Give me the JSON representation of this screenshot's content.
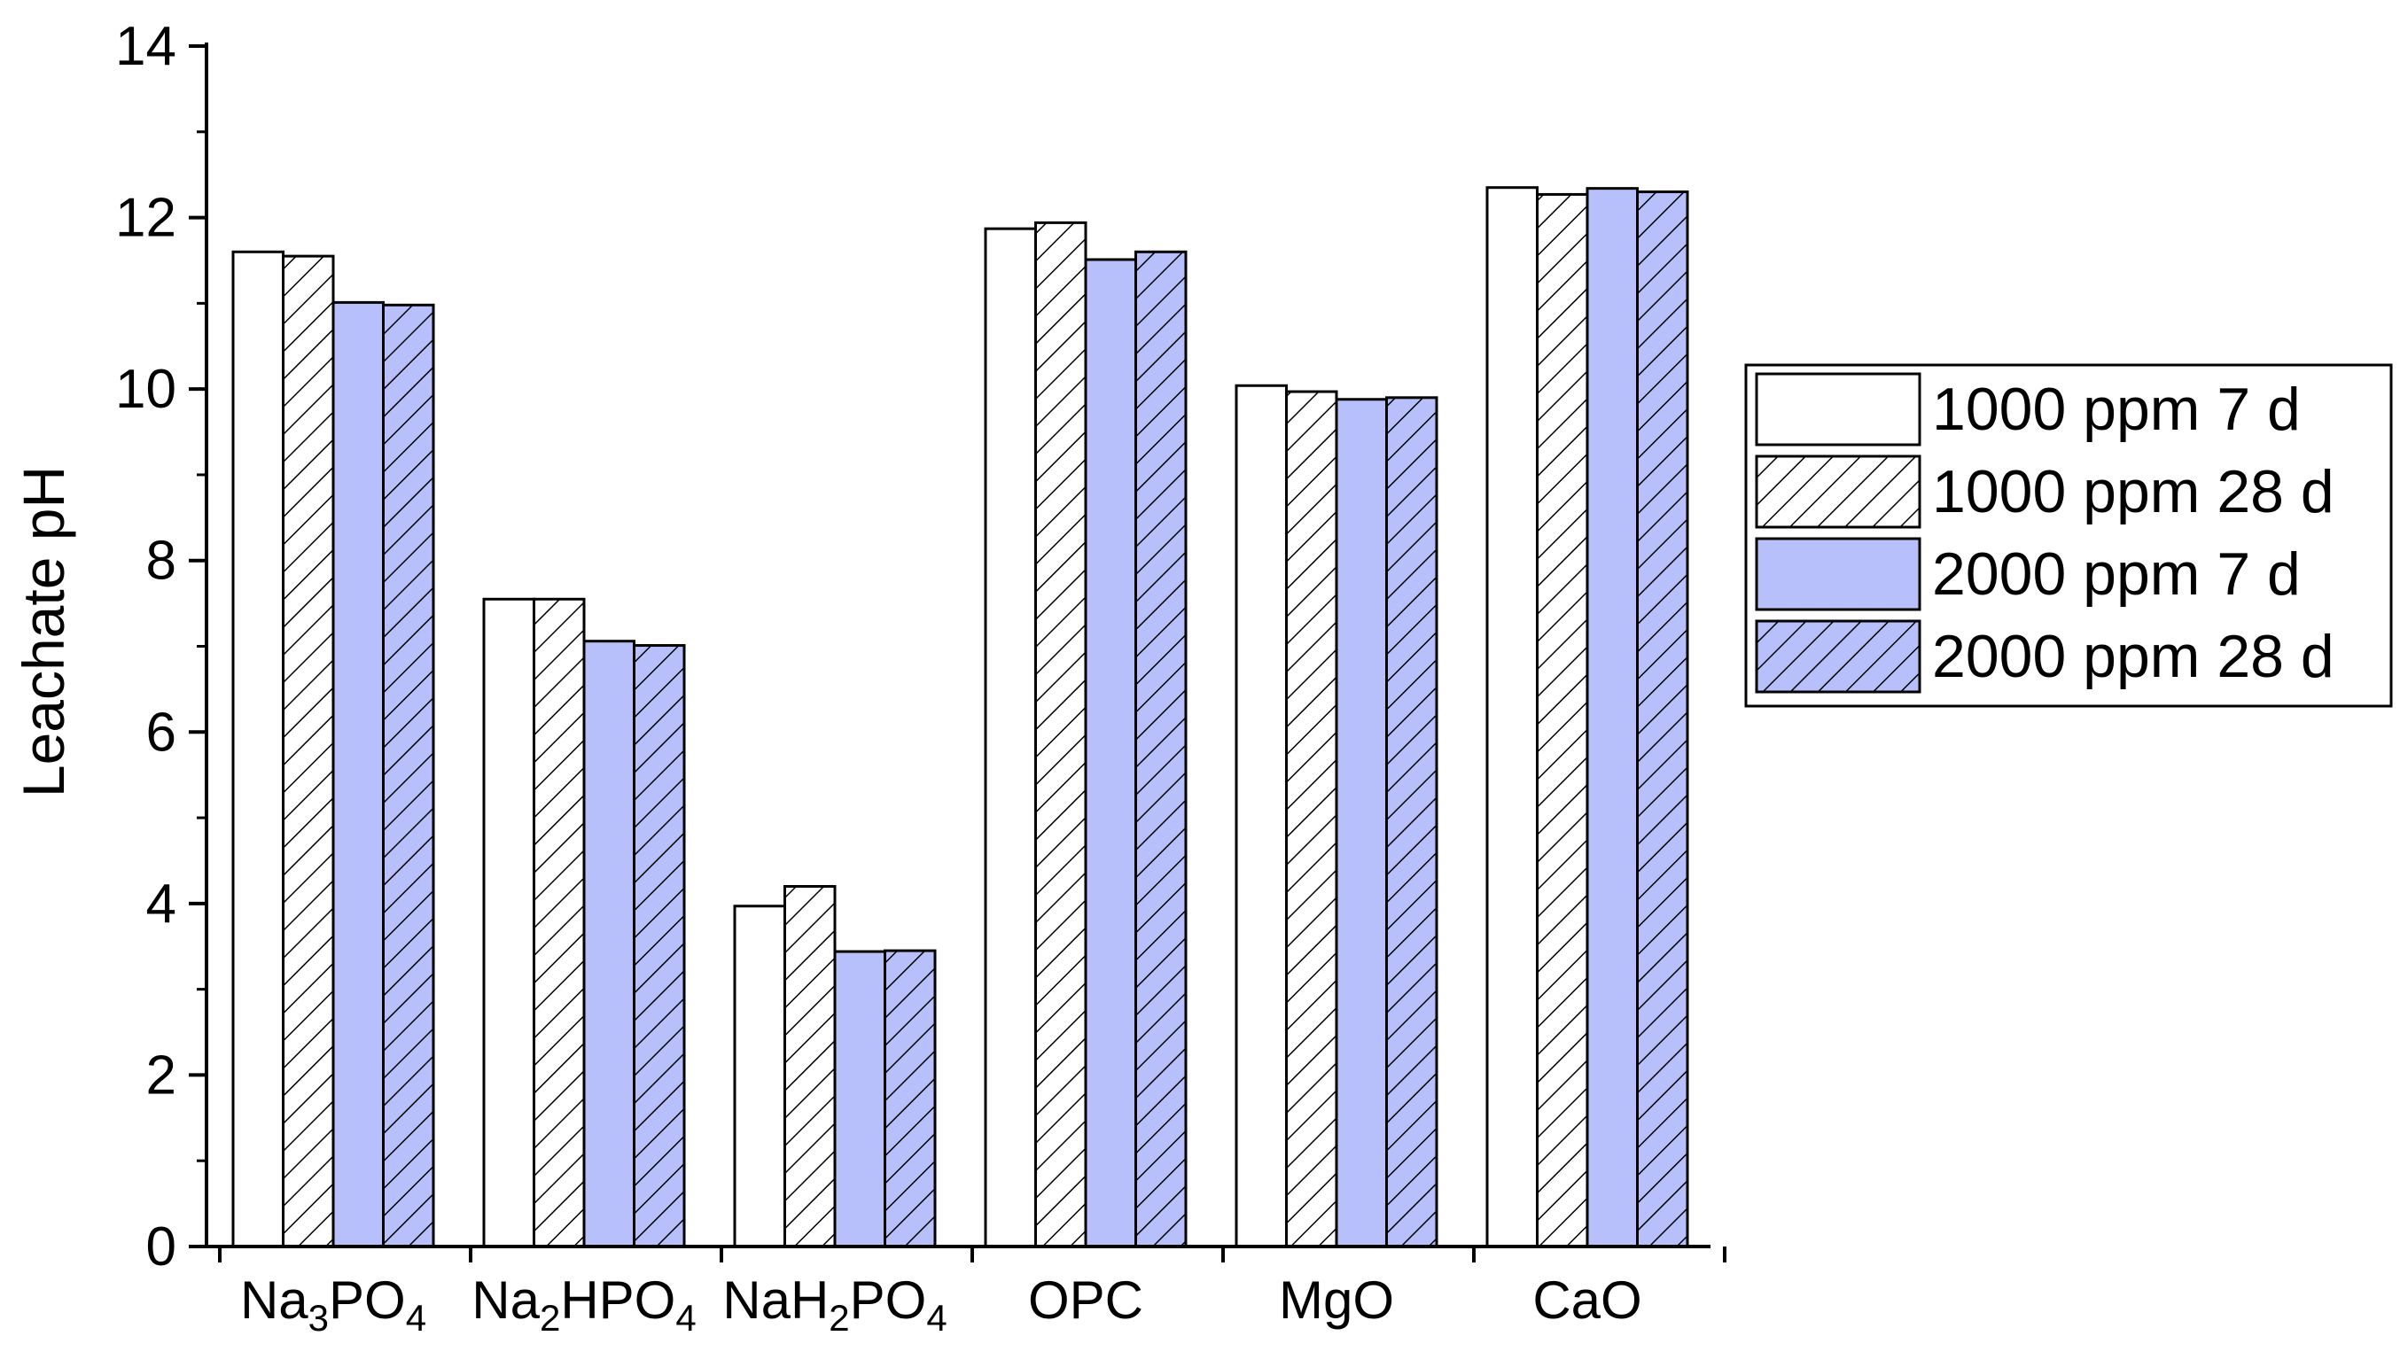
{
  "chart_data": {
    "type": "bar",
    "title": "",
    "xlabel": "",
    "ylabel": "Leachate pH",
    "ylim": [
      0,
      14
    ],
    "yticks": [
      0,
      2,
      4,
      6,
      8,
      10,
      12,
      14
    ],
    "grid": false,
    "legend_position": "right",
    "categories": [
      "Na3PO4",
      "Na2HPO4",
      "NaH2PO4",
      "OPC",
      "MgO",
      "CaO"
    ],
    "category_labels": [
      [
        {
          "t": "Na"
        },
        {
          "t": "3",
          "sub": true
        },
        {
          "t": "PO"
        },
        {
          "t": "4",
          "sub": true
        }
      ],
      [
        {
          "t": "Na"
        },
        {
          "t": "2",
          "sub": true
        },
        {
          "t": "HPO"
        },
        {
          "t": "4",
          "sub": true
        }
      ],
      [
        {
          "t": "NaH"
        },
        {
          "t": "2",
          "sub": true
        },
        {
          "t": "PO"
        },
        {
          "t": "4",
          "sub": true
        }
      ],
      [
        {
          "t": "OPC"
        }
      ],
      [
        {
          "t": "MgO"
        }
      ],
      [
        {
          "t": "CaO"
        }
      ]
    ],
    "series": [
      {
        "name": "1000 ppm 7 d",
        "values": [
          11.6,
          7.55,
          3.97,
          11.87,
          10.04,
          12.35
        ],
        "fill": "#ffffff",
        "hatch": false
      },
      {
        "name": "1000 ppm 28 d",
        "values": [
          11.55,
          7.55,
          4.2,
          11.94,
          9.97,
          12.27
        ],
        "fill": "#ffffff",
        "hatch": true
      },
      {
        "name": "2000 ppm 7 d",
        "values": [
          11.01,
          7.06,
          3.44,
          11.51,
          9.88,
          12.34
        ],
        "fill": "#b8c0fb",
        "hatch": false
      },
      {
        "name": "2000 ppm 28 d",
        "values": [
          10.98,
          7.01,
          3.45,
          11.6,
          9.9,
          12.3
        ],
        "fill": "#b8c0fb",
        "hatch": true
      }
    ]
  }
}
